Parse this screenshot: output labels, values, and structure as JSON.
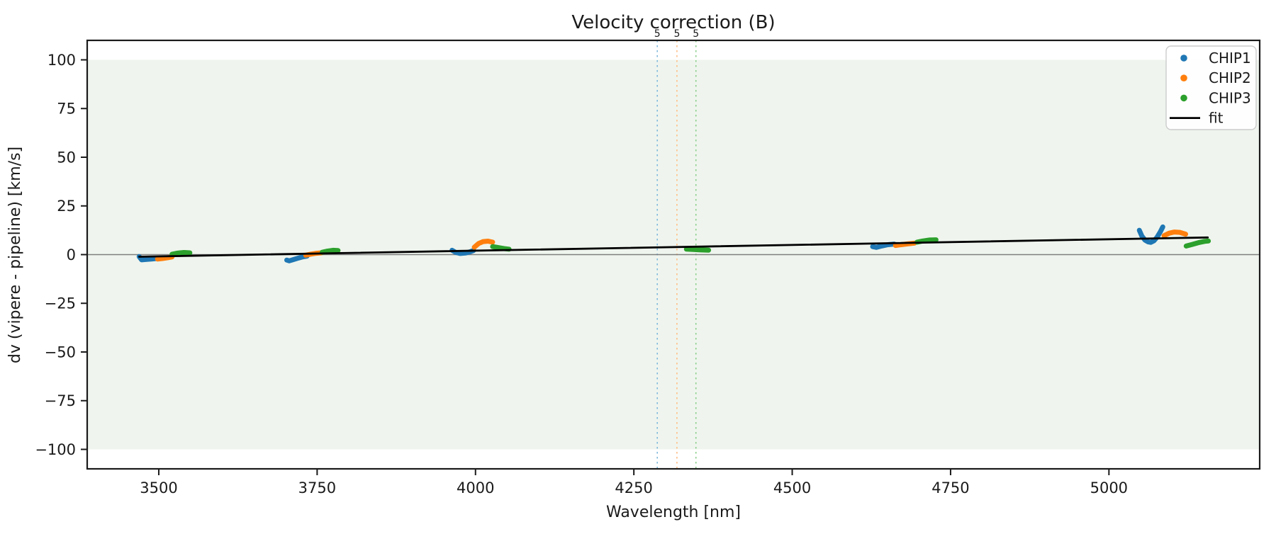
{
  "chart_data": {
    "type": "scatter",
    "title": "Velocity correction (B)",
    "xlabel": "Wavelength [nm]",
    "ylabel": "dv (vipere - pipeline) [km/s]",
    "xlim": [
      3387,
      5238
    ],
    "ylim": [
      -110,
      110
    ],
    "grid": false,
    "x_ticks": [
      {
        "value": 3500,
        "label": "3500"
      },
      {
        "value": 3750,
        "label": "3750"
      },
      {
        "value": 4000,
        "label": "4000"
      },
      {
        "value": 4250,
        "label": "4250"
      },
      {
        "value": 4500,
        "label": "4500"
      },
      {
        "value": 4750,
        "label": "4750"
      },
      {
        "value": 5000,
        "label": "5000"
      }
    ],
    "y_ticks": [
      {
        "value": 100,
        "label": "100"
      },
      {
        "value": 75,
        "label": "75"
      },
      {
        "value": 50,
        "label": "50"
      },
      {
        "value": 25,
        "label": "25"
      },
      {
        "value": 0,
        "label": "0"
      },
      {
        "value": -25,
        "label": "−25"
      },
      {
        "value": -50,
        "label": "−50"
      },
      {
        "value": -75,
        "label": "−75"
      },
      {
        "value": -100,
        "label": "−100"
      }
    ],
    "background_band": {
      "ymin": -100,
      "ymax": 100,
      "color": "#eff5ee"
    },
    "zero_line": {
      "y": 0,
      "color": "#7f7f7f"
    },
    "vlines": [
      {
        "x": 4287,
        "label": "5",
        "color": "#7fb8dc"
      },
      {
        "x": 4318,
        "label": "5",
        "color": "#ffbe86"
      },
      {
        "x": 4348,
        "label": "5",
        "color": "#8ecf8e"
      }
    ],
    "series": [
      {
        "name": "CHIP1",
        "color": "#1f77b4",
        "segments": [
          [
            [
              3469,
              -1.0
            ],
            [
              3473,
              -2.7
            ],
            [
              3479,
              -2.5
            ],
            [
              3488,
              -2.3
            ],
            [
              3497,
              -2.0
            ]
          ],
          [
            [
              3702,
              -2.8
            ],
            [
              3706,
              -3.2
            ],
            [
              3713,
              -2.5
            ],
            [
              3721,
              -1.7
            ],
            [
              3728,
              -1.1
            ],
            [
              3734,
              -0.8
            ]
          ],
          [
            [
              3963,
              2.2
            ],
            [
              3969,
              1.1
            ],
            [
              3976,
              0.6
            ],
            [
              3984,
              0.8
            ],
            [
              3991,
              1.4
            ],
            [
              3997,
              2.1
            ]
          ],
          [
            [
              4627,
              4.1
            ],
            [
              4633,
              3.7
            ],
            [
              4641,
              4.4
            ],
            [
              4651,
              5.1
            ],
            [
              4661,
              5.4
            ]
          ],
          [
            [
              5048,
              12.5
            ],
            [
              5052,
              9.5
            ],
            [
              5057,
              7.4
            ],
            [
              5062,
              6.5
            ],
            [
              5066,
              6.3
            ],
            [
              5071,
              7.1
            ],
            [
              5076,
              8.9
            ],
            [
              5081,
              11.6
            ],
            [
              5085,
              14.2
            ]
          ]
        ]
      },
      {
        "name": "CHIP2",
        "color": "#ff7f0e",
        "segments": [
          [
            [
              3498,
              -2.3
            ],
            [
              3506,
              -2.0
            ],
            [
              3514,
              -1.6
            ],
            [
              3521,
              -1.2
            ]
          ],
          [
            [
              3732,
              -0.3
            ],
            [
              3741,
              0.3
            ],
            [
              3749,
              0.7
            ],
            [
              3757,
              0.9
            ]
          ],
          [
            [
              3998,
              3.8
            ],
            [
              4005,
              5.7
            ],
            [
              4012,
              6.7
            ],
            [
              4020,
              6.9
            ],
            [
              4027,
              6.4
            ]
          ],
          [
            [
              4663,
              4.7
            ],
            [
              4672,
              5.1
            ],
            [
              4682,
              5.5
            ],
            [
              4693,
              5.9
            ]
          ],
          [
            [
              5087,
              9.7
            ],
            [
              5095,
              11.0
            ],
            [
              5103,
              11.6
            ],
            [
              5112,
              11.4
            ],
            [
              5121,
              10.5
            ]
          ]
        ]
      },
      {
        "name": "CHIP3",
        "color": "#2ca02c",
        "segments": [
          [
            [
              3521,
              0.2
            ],
            [
              3530,
              0.8
            ],
            [
              3540,
              1.1
            ],
            [
              3549,
              0.9
            ]
          ],
          [
            [
              3758,
              1.2
            ],
            [
              3766,
              1.8
            ],
            [
              3775,
              2.2
            ],
            [
              3783,
              2.1
            ]
          ],
          [
            [
              4027,
              4.1
            ],
            [
              4036,
              3.6
            ],
            [
              4045,
              3.1
            ],
            [
              4053,
              2.8
            ]
          ],
          [
            [
              4333,
              2.8
            ],
            [
              4344,
              2.6
            ],
            [
              4356,
              2.4
            ],
            [
              4368,
              2.3
            ]
          ],
          [
            [
              4697,
              6.4
            ],
            [
              4706,
              7.0
            ],
            [
              4717,
              7.5
            ],
            [
              4727,
              7.6
            ]
          ],
          [
            [
              5122,
              4.4
            ],
            [
              5131,
              5.2
            ],
            [
              5141,
              6.1
            ],
            [
              5151,
              6.8
            ],
            [
              5157,
              7.0
            ]
          ]
        ]
      }
    ],
    "fit": {
      "name": "fit",
      "color": "#000000",
      "points": [
        [
          3469,
          -1.1
        ],
        [
          5156,
          8.8
        ]
      ]
    },
    "legend": {
      "position": "upper right",
      "entries": [
        {
          "label": "CHIP1",
          "color": "#1f77b4",
          "marker": "dot"
        },
        {
          "label": "CHIP2",
          "color": "#ff7f0e",
          "marker": "dot"
        },
        {
          "label": "CHIP3",
          "color": "#2ca02c",
          "marker": "dot"
        },
        {
          "label": "fit",
          "color": "#000000",
          "marker": "line"
        }
      ]
    }
  }
}
